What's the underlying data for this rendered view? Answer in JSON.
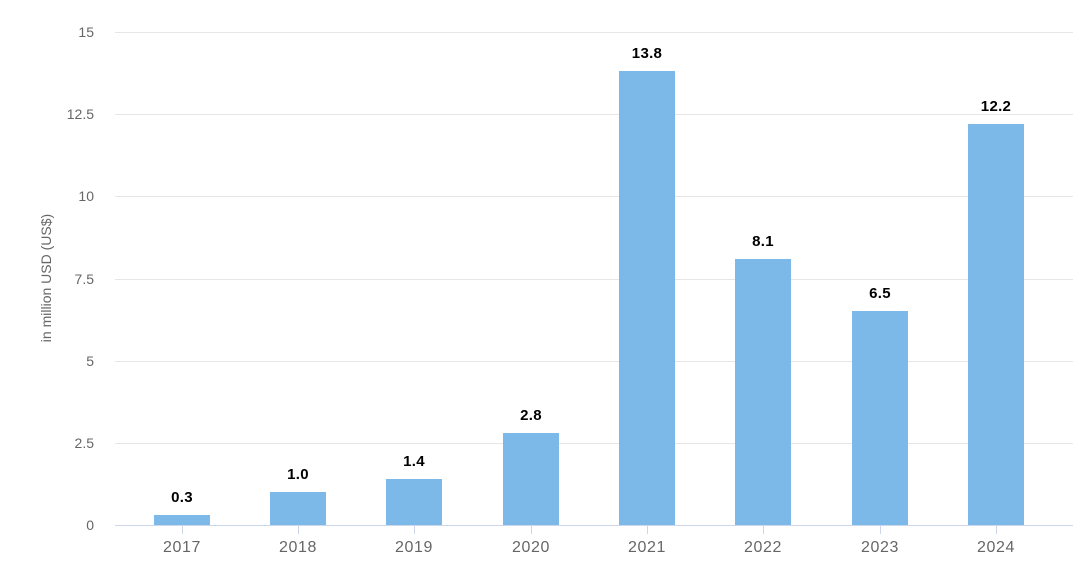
{
  "chart_data": {
    "type": "bar",
    "title": "",
    "xlabel": "",
    "ylabel": "in million USD (US$)",
    "categories": [
      "2017",
      "2018",
      "2019",
      "2020",
      "2021",
      "2022",
      "2023",
      "2024"
    ],
    "values": [
      0.3,
      1.0,
      1.4,
      2.8,
      13.8,
      8.1,
      6.5,
      12.2
    ],
    "value_labels": [
      "0.3",
      "1.0",
      "1.4",
      "2.8",
      "13.8",
      "8.1",
      "6.5",
      "12.2"
    ],
    "ylim": [
      0,
      15
    ],
    "yticks": [
      0,
      2.5,
      5,
      7.5,
      10,
      12.5,
      15
    ],
    "ytick_labels": [
      "0",
      "2.5",
      "5",
      "7.5",
      "10",
      "12.5",
      "15"
    ],
    "grid": "horizontal-only",
    "legend": "none",
    "colors": {
      "bar": "#7cb9e8",
      "gridline": "#e6e6e6",
      "axis_line": "#ccd6eb",
      "tick_mark": "#ccd6eb",
      "axis_text": "#666666",
      "data_label": "#000000",
      "background": "#ffffff"
    }
  }
}
